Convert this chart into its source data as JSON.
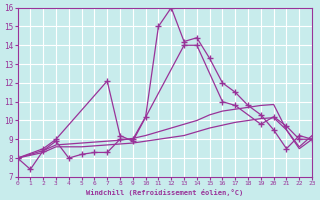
{
  "xlabel": "Windchill (Refroidissement éolien,°C)",
  "xlim": [
    0,
    23
  ],
  "ylim": [
    7,
    16
  ],
  "xticks": [
    0,
    1,
    2,
    3,
    4,
    5,
    6,
    7,
    8,
    9,
    10,
    11,
    12,
    13,
    14,
    15,
    16,
    17,
    18,
    19,
    20,
    21,
    22,
    23
  ],
  "yticks": [
    7,
    8,
    9,
    10,
    11,
    12,
    13,
    14,
    15,
    16
  ],
  "bg_color": "#c8ecec",
  "grid_color": "#ffffff",
  "lc": "#993399",
  "curve1_x": [
    0,
    1,
    2,
    3,
    4,
    5,
    6,
    7,
    8,
    9,
    10,
    11,
    12,
    13,
    14,
    15,
    16,
    17,
    18,
    19,
    20,
    21,
    22,
    23
  ],
  "curve1_y": [
    8.0,
    7.4,
    8.4,
    8.9,
    8.0,
    8.2,
    8.3,
    8.3,
    9.0,
    9.0,
    10.2,
    15.0,
    16.0,
    14.2,
    14.4,
    13.3,
    12.0,
    11.5,
    10.8,
    10.3,
    9.5,
    8.5,
    9.2,
    9.0
  ],
  "curve2_x": [
    0,
    2,
    3,
    7,
    8,
    9,
    13,
    14,
    16,
    17,
    19,
    20,
    21,
    22,
    23
  ],
  "curve2_y": [
    8.0,
    8.5,
    9.0,
    12.1,
    9.2,
    8.9,
    14.0,
    14.0,
    11.0,
    10.8,
    9.8,
    10.2,
    9.7,
    9.0,
    9.0
  ],
  "line3_x": [
    0,
    2,
    3,
    4,
    5,
    6,
    7,
    8,
    9,
    10,
    11,
    12,
    13,
    14,
    15,
    16,
    17,
    18,
    19,
    20,
    21,
    22,
    23
  ],
  "line3_y": [
    8.0,
    8.3,
    8.6,
    8.6,
    8.6,
    8.65,
    8.7,
    8.75,
    8.8,
    8.9,
    9.0,
    9.1,
    9.2,
    9.4,
    9.6,
    9.75,
    9.9,
    10.0,
    10.1,
    10.15,
    9.5,
    8.5,
    9.0
  ],
  "line4_x": [
    0,
    2,
    3,
    4,
    5,
    6,
    7,
    8,
    9,
    10,
    11,
    12,
    13,
    14,
    15,
    16,
    17,
    18,
    19,
    20,
    21,
    22,
    23
  ],
  "line4_y": [
    8.0,
    8.4,
    8.7,
    8.75,
    8.8,
    8.85,
    8.9,
    8.95,
    9.05,
    9.2,
    9.4,
    9.6,
    9.8,
    10.0,
    10.3,
    10.5,
    10.6,
    10.7,
    10.8,
    10.85,
    9.5,
    8.6,
    9.2
  ]
}
